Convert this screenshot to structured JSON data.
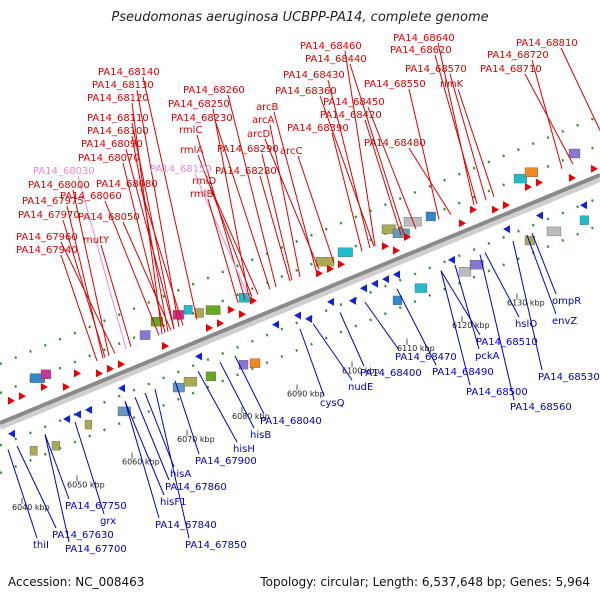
{
  "title": "Pseudomonas aeruginosa UCBPP-PA14, complete genome",
  "footer": {
    "accession": "Accession: NC_008463",
    "topology": "Topology: circular; Length: 6,537,648 bp; Genes: 5,964"
  },
  "colors": {
    "upper_label": "#dd0000",
    "lower_label": "#0000cc",
    "pink_label": "#ee88cc",
    "backbone": "#999999",
    "tick": "#1a7a1a"
  },
  "kbp_ticks": [
    "6040 kbp",
    "6050 kbp",
    "6060 kbp",
    "6070 kbp",
    "6080 kbp",
    "6090 kbp",
    "6100 kbp",
    "6110 kbp",
    "6120 kbp",
    "6130 kbp"
  ],
  "upper_labels": [
    {
      "text": "PA14_68460",
      "color": "red"
    },
    {
      "text": "PA14_68640",
      "color": "red"
    },
    {
      "text": "PA14_68620",
      "color": "red"
    },
    {
      "text": "PA14_68810",
      "color": "red"
    },
    {
      "text": "PA14_68440",
      "color": "red"
    },
    {
      "text": "PA14_68720",
      "color": "red"
    },
    {
      "text": "PA14_68570",
      "color": "red"
    },
    {
      "text": "PA14_68430",
      "color": "red"
    },
    {
      "text": "PA14_68710",
      "color": "red"
    },
    {
      "text": "PA14_68140",
      "color": "red"
    },
    {
      "text": "PA14_68550",
      "color": "red"
    },
    {
      "text": "rimK",
      "color": "red"
    },
    {
      "text": "PA14_68130",
      "color": "red"
    },
    {
      "text": "PA14_68260",
      "color": "red"
    },
    {
      "text": "PA14_68360",
      "color": "red"
    },
    {
      "text": "PA14_68120",
      "color": "red"
    },
    {
      "text": "PA14_68250",
      "color": "red"
    },
    {
      "text": "arcB",
      "color": "red"
    },
    {
      "text": "PA14_68450",
      "color": "red"
    },
    {
      "text": "PA14_68230",
      "color": "red"
    },
    {
      "text": "arcA",
      "color": "red"
    },
    {
      "text": "PA14_68420",
      "color": "red"
    },
    {
      "text": "PA14_68110",
      "color": "red"
    },
    {
      "text": "rmlC",
      "color": "red"
    },
    {
      "text": "arcD",
      "color": "red"
    },
    {
      "text": "PA14_68390",
      "color": "red"
    },
    {
      "text": "PA14_68100",
      "color": "red"
    },
    {
      "text": "PA14_68480",
      "color": "red"
    },
    {
      "text": "PA14_68090",
      "color": "red"
    },
    {
      "text": "rmlA",
      "color": "red"
    },
    {
      "text": "PA14_68290",
      "color": "red"
    },
    {
      "text": "arcC",
      "color": "red"
    },
    {
      "text": "PA14_68070",
      "color": "red"
    },
    {
      "text": "PA14_68030",
      "color": "pink"
    },
    {
      "text": "PA14_68150",
      "color": "pink"
    },
    {
      "text": "PA14_68280",
      "color": "red"
    },
    {
      "text": "PA14_68000",
      "color": "red"
    },
    {
      "text": "PA14_68080",
      "color": "red"
    },
    {
      "text": "rmlD",
      "color": "red"
    },
    {
      "text": "PA14_68060",
      "color": "red"
    },
    {
      "text": "rmlB",
      "color": "red"
    },
    {
      "text": "PA14_67975",
      "color": "red"
    },
    {
      "text": "PA14_67970",
      "color": "red"
    },
    {
      "text": "PA14_68050",
      "color": "red"
    },
    {
      "text": "PA14_67960",
      "color": "red"
    },
    {
      "text": "mutY",
      "color": "red"
    },
    {
      "text": "PA14_67940",
      "color": "red"
    }
  ],
  "lower_labels": [
    "ompR",
    "envZ",
    "hslO",
    "PA14_68510",
    "pckA",
    "PA14_68530",
    "PA14_68470",
    "PA14_68490",
    "PA14_68400",
    "PA14_68500",
    "PA14_68560",
    "nudE",
    "cysQ",
    "PA14_68040",
    "hisB",
    "hisH",
    "PA14_67900",
    "hisA",
    "PA14_67860",
    "hisF1",
    "PA14_67750",
    "grx",
    "PA14_67840",
    "PA14_67630",
    "PA14_67700",
    "thiI",
    "PA14_67850"
  ]
}
